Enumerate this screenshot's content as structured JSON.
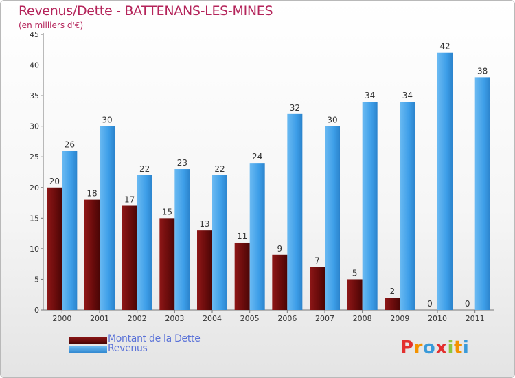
{
  "title": "Revenus/Dette - BATTENANS-LES-MINES",
  "subtitle": "(en milliers d'€)",
  "colors": {
    "dette": "#6b0c0c",
    "revenus": "#3d9ee8",
    "title": "#b4245a",
    "legend_text": "#5a72d8"
  },
  "legend": {
    "dette_label": "Montant de la Dette",
    "revenus_label": "Revenus"
  },
  "logo": {
    "text": "Proxiti",
    "letters": [
      "P",
      "r",
      "o",
      "x",
      "i",
      "t",
      "i"
    ]
  },
  "chart_data": {
    "type": "bar",
    "title": "Revenus/Dette - BATTENANS-LES-MINES",
    "subtitle": "(en milliers d'€)",
    "categories": [
      "2000",
      "2001",
      "2002",
      "2003",
      "2004",
      "2005",
      "2006",
      "2007",
      "2008",
      "2009",
      "2010",
      "2011"
    ],
    "series": [
      {
        "name": "Montant de la Dette",
        "values": [
          20,
          18,
          17,
          15,
          13,
          11,
          9,
          7,
          5,
          2,
          0,
          0
        ]
      },
      {
        "name": "Revenus",
        "values": [
          26,
          30,
          22,
          23,
          22,
          24,
          32,
          30,
          34,
          34,
          42,
          38
        ]
      }
    ],
    "ylim": [
      0,
      45
    ],
    "yticks": [
      0,
      5,
      10,
      15,
      20,
      25,
      30,
      35,
      40,
      45
    ],
    "xlabel": "",
    "ylabel": "",
    "grid": false,
    "legend_position": "bottom-left"
  }
}
